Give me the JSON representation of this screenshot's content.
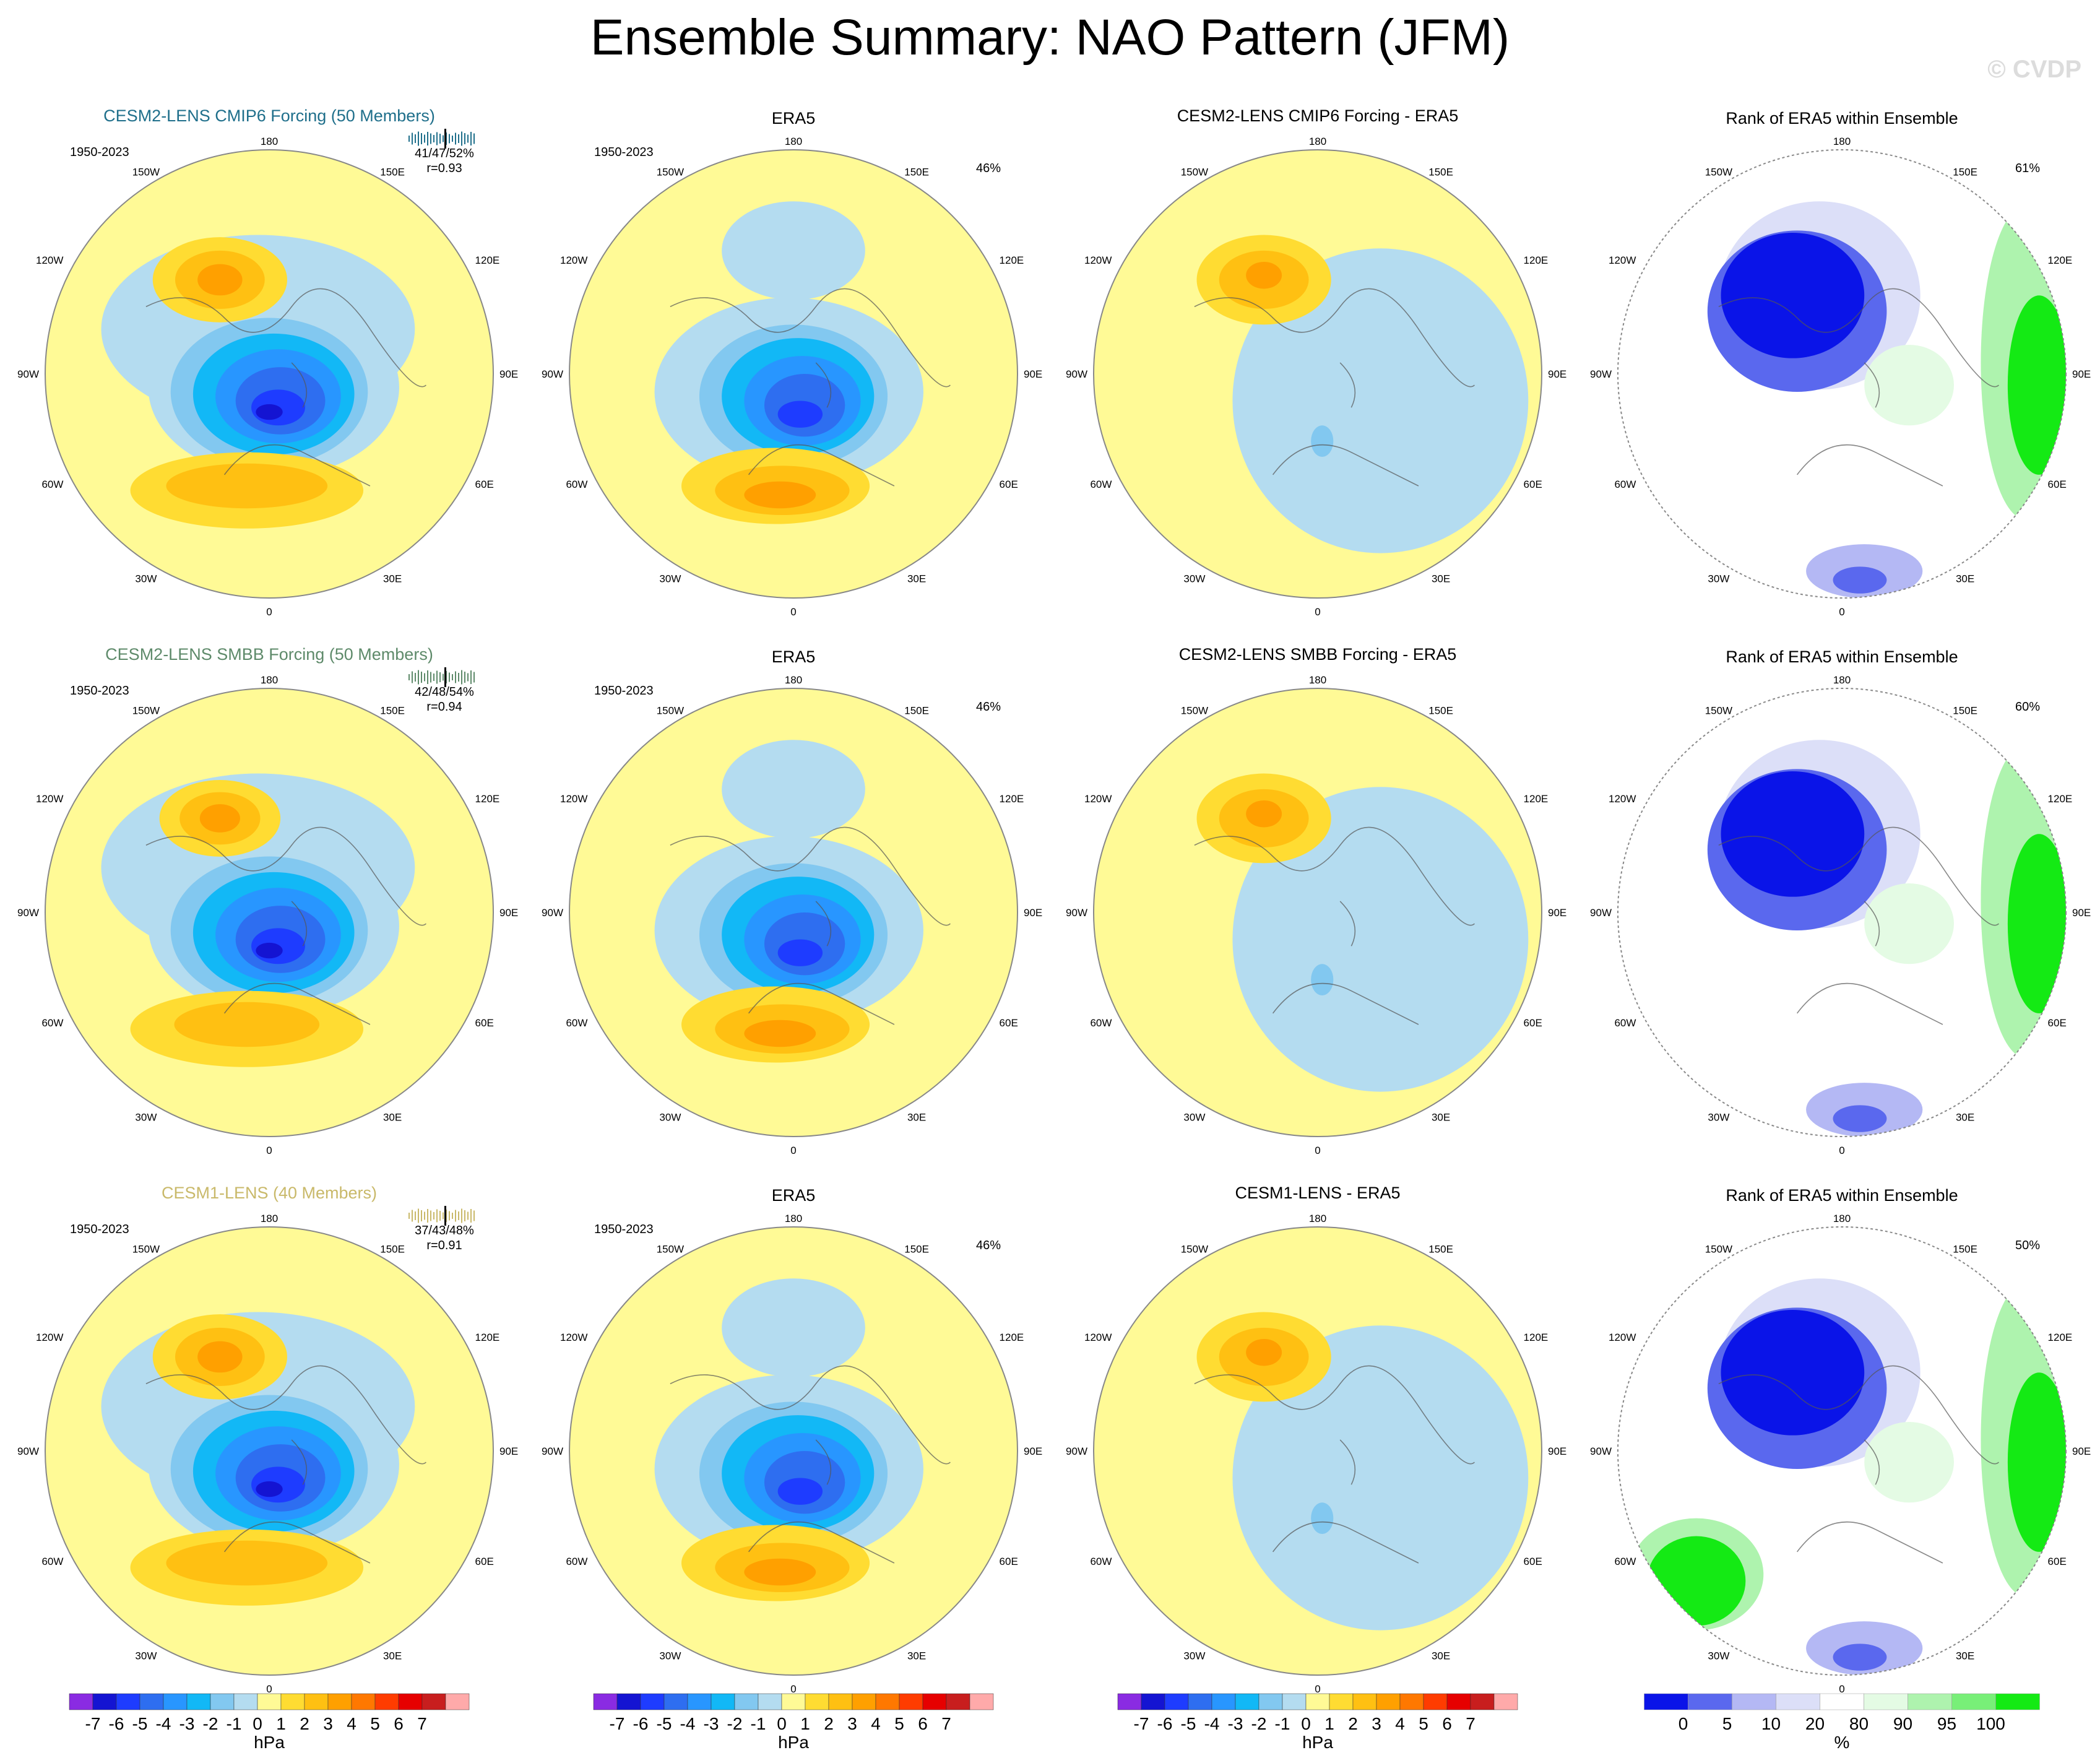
{
  "title": "Ensemble Summary: NAO Pattern (JFM)",
  "watermark": "© CVDP",
  "colors": {
    "rank_blue_dark": "#0a14e8",
    "rank_blue_mid": "#5a68ee",
    "rank_blue_light": "#b4b8f4",
    "rank_blue_pale": "#dcdff8",
    "rank_green_pale": "#e4fbe4",
    "rank_green_light": "#aef3ae",
    "rank_green_mid": "#78ef78",
    "rank_green": "#14ea14"
  },
  "chart_data": [
    {
      "row": 1,
      "ensemble": {
        "title": "CESM2-LENS CMIP6 Forcing (50 Members)",
        "title_color": "#1f6f8b",
        "period": "1950-2023",
        "stats": "41/47/52%",
        "corr": "r=0.93"
      },
      "era5": {
        "title": "ERA5",
        "period": "1950-2023",
        "pct": "46%"
      },
      "diff": {
        "title": "CESM2-LENS CMIP6 Forcing - ERA5"
      },
      "rank": {
        "title": "Rank of ERA5 within Ensemble",
        "pct": "61%"
      }
    },
    {
      "row": 2,
      "ensemble": {
        "title": "CESM2-LENS SMBB Forcing (50 Members)",
        "title_color": "#5e8a6a",
        "period": "1950-2023",
        "stats": "42/48/54%",
        "corr": "r=0.94"
      },
      "era5": {
        "title": "ERA5",
        "period": "1950-2023",
        "pct": "46%"
      },
      "diff": {
        "title": "CESM2-LENS SMBB Forcing - ERA5"
      },
      "rank": {
        "title": "Rank of ERA5 within Ensemble",
        "pct": "60%"
      }
    },
    {
      "row": 3,
      "ensemble": {
        "title": "CESM1-LENS (40 Members)",
        "title_color": "#c9b96a",
        "period": "1950-2023",
        "stats": "37/43/48%",
        "corr": "r=0.91"
      },
      "era5": {
        "title": "ERA5",
        "period": "1950-2023",
        "pct": "46%"
      },
      "diff": {
        "title": "CESM1-LENS - ERA5"
      },
      "rank": {
        "title": "Rank of ERA5 within Ensemble",
        "pct": "50%"
      }
    }
  ],
  "map_labels": {
    "top": "180",
    "bottom": "0",
    "left": "90W",
    "right": "90E",
    "upper_left_1": "150W",
    "upper_left_2": "120W",
    "upper_right_1": "150E",
    "upper_right_2": "120E",
    "lower_left_1": "60W",
    "lower_left_2": "30W",
    "lower_right_1": "60E",
    "lower_right_2": "30E"
  },
  "hpa_colorbar": {
    "colors": [
      "#8a2be2",
      "#1414d2",
      "#1e3cff",
      "#2e6ef0",
      "#2896ff",
      "#12b8f6",
      "#82c8f0",
      "#b4dcf0",
      "#fffa96",
      "#ffdc32",
      "#ffc012",
      "#ffa000",
      "#ff7800",
      "#ff3c00",
      "#e60000",
      "#c81e1e",
      "#ffaaaa"
    ],
    "tick_labels": [
      "-7",
      "-6",
      "-5",
      "-4",
      "-3",
      "-2",
      "-1",
      "0",
      "1",
      "2",
      "3",
      "4",
      "5",
      "6",
      "7"
    ],
    "unit": "hPa"
  },
  "pct_colorbar": {
    "colors": [
      "#0a14e8",
      "#5a68ee",
      "#b4b8f4",
      "#dcdff8",
      "#ffffff",
      "#e4fbe4",
      "#aef3ae",
      "#78ef78",
      "#14ea14"
    ],
    "tick_labels": [
      "0",
      "5",
      "10",
      "20",
      "80",
      "90",
      "95",
      "100"
    ],
    "unit": "%"
  }
}
